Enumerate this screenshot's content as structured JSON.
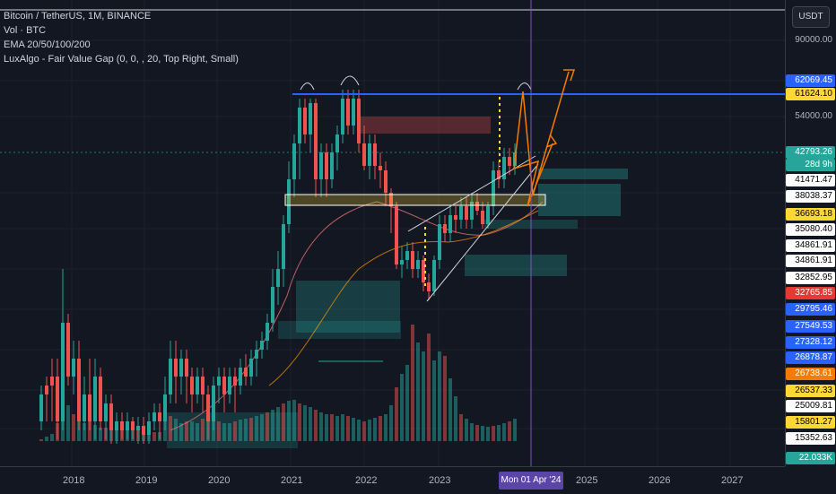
{
  "legend": {
    "symbol": "Bitcoin / TetherUS, 1M, BINANCE",
    "vol": "Vol · BTC",
    "ema": "EMA 20/50/100/200",
    "fvg": "LuxAlgo - Fair Value Gap (0, 0, , 20, Top Right, Small)"
  },
  "currency_button": "USDT",
  "price_labels": [
    {
      "text": "90000.00",
      "bg": "",
      "fg": "#b2b5be"
    },
    {
      "text": "62069.45",
      "bg": "#2962ff",
      "fg": "#ffffff"
    },
    {
      "text": "61624.10",
      "bg": "#fdd835",
      "fg": "#000000"
    },
    {
      "text": "54000.00",
      "bg": "",
      "fg": "#b2b5be"
    },
    {
      "text": "42793.26",
      "bg": "#26a69a",
      "fg": "#ffffff"
    },
    {
      "text": "28d 9h",
      "bg": "#26a69a",
      "fg": "#ffffff"
    },
    {
      "text": "41471.47",
      "bg": "#ffffff",
      "fg": "#000000"
    },
    {
      "text": "38038.37",
      "bg": "#ffffff",
      "fg": "#000000"
    },
    {
      "text": "36693.18",
      "bg": "#fdd835",
      "fg": "#000000"
    },
    {
      "text": "35080.40",
      "bg": "#ffffff",
      "fg": "#000000"
    },
    {
      "text": "34861.91",
      "bg": "#ffffff",
      "fg": "#000000"
    },
    {
      "text": "34861.91",
      "bg": "#ffffff",
      "fg": "#000000"
    },
    {
      "text": "32852.95",
      "bg": "#ffffff",
      "fg": "#000000"
    },
    {
      "text": "32765.85",
      "bg": "#e53935",
      "fg": "#ffffff"
    },
    {
      "text": "29795.46",
      "bg": "#2962ff",
      "fg": "#ffffff"
    },
    {
      "text": "27549.53",
      "bg": "#2962ff",
      "fg": "#ffffff"
    },
    {
      "text": "27328.12",
      "bg": "#2962ff",
      "fg": "#ffffff"
    },
    {
      "text": "26878.87",
      "bg": "#2962ff",
      "fg": "#ffffff"
    },
    {
      "text": "26738.61",
      "bg": "#f57c00",
      "fg": "#ffffff"
    },
    {
      "text": "26537.33",
      "bg": "#fdd835",
      "fg": "#000000"
    },
    {
      "text": "25009.81",
      "bg": "#ffffff",
      "fg": "#000000"
    },
    {
      "text": "15801.27",
      "bg": "#fdd835",
      "fg": "#000000"
    },
    {
      "text": "15352.63",
      "bg": "#ffffff",
      "fg": "#000000"
    },
    {
      "text": "22.033K",
      "bg": "#26a69a",
      "fg": "#ffffff"
    }
  ],
  "time_labels": [
    "2018",
    "2019",
    "2020",
    "2021",
    "2022",
    "2023",
    "2025",
    "2026",
    "2027"
  ],
  "crosshair_date": "Mon 01 Apr '24",
  "colors": {
    "up": "#26a69a",
    "down": "#ef5350",
    "accent": "#2962ff",
    "background": "#131722"
  }
}
